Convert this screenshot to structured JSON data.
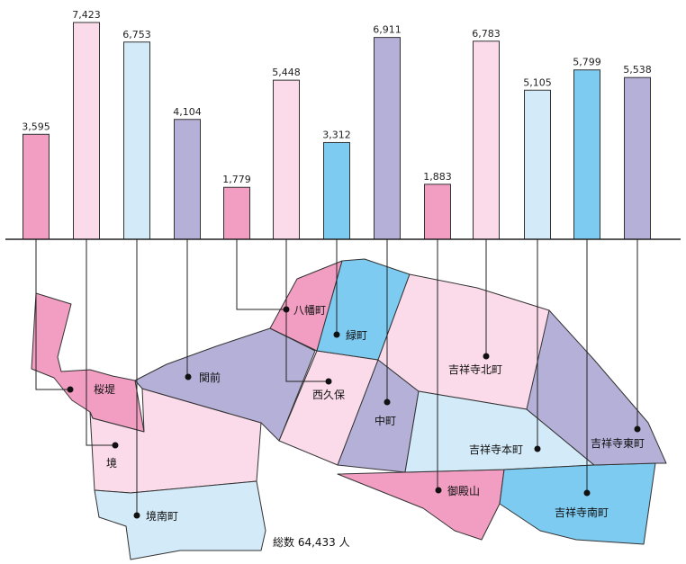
{
  "chart_data": {
    "type": "bar",
    "categories": [
      "桜堤",
      "境",
      "境南町",
      "関前",
      "八幡町",
      "西久保",
      "緑町",
      "中町",
      "御殿山",
      "吉祥寺北町",
      "吉祥寺本町",
      "吉祥寺南町",
      "吉祥寺東町"
    ],
    "values": [
      3595,
      7423,
      6753,
      4104,
      1779,
      5448,
      3312,
      6911,
      1883,
      6783,
      5105,
      5799,
      5538
    ],
    "value_labels": [
      "3,595",
      "7,423",
      "6,753",
      "4,104",
      "1,779",
      "5,448",
      "3,312",
      "6,911",
      "1,883",
      "6,783",
      "5,105",
      "5,799",
      "5,538"
    ],
    "colors": [
      "#f19ec2",
      "#fbdbea",
      "#d3eaf8",
      "#b5b0d8",
      "#f19ec2",
      "#fbdbea",
      "#7dcbf1",
      "#b5b0d8",
      "#f19ec2",
      "#fbdbea",
      "#d3eaf8",
      "#7dcbf1",
      "#b5b0d8"
    ],
    "grid": false,
    "legend": "none",
    "total_label": "総数 64,433 人"
  }
}
